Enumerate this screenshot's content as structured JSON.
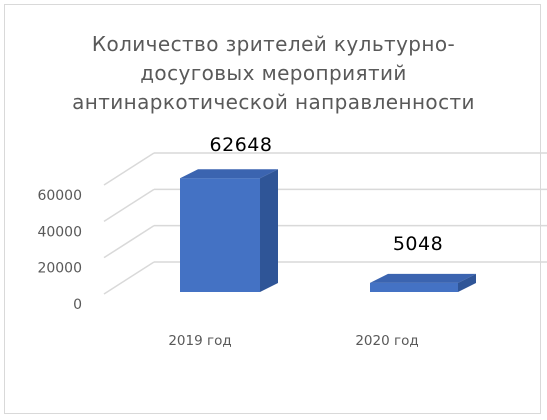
{
  "chart_data": {
    "type": "bar",
    "title_lines": [
      "Количество зрителей  культурно-",
      "досуговых мероприятий",
      "антинаркотической  направленности"
    ],
    "categories": [
      "2019 год",
      "2020 год"
    ],
    "values": [
      62648,
      5048
    ],
    "value_labels": [
      "62648",
      "5048"
    ],
    "y_ticks": [
      "0",
      "20000",
      "40000",
      "60000"
    ],
    "ylim": [
      0,
      60000
    ],
    "grid": true,
    "legend": "none",
    "colors": {
      "bar_front": "#4472c4",
      "bar_side": "#2f5597",
      "bar_top": "#3b64b0",
      "grid": "#d9d9d9",
      "text": "#595959",
      "label": "#000000"
    }
  }
}
